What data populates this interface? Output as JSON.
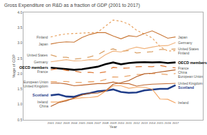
{
  "chart_data": {
    "type": "line",
    "title": "Gross Expenditure on R&D as a fraction of GDP (2001 to 2017)",
    "x_label": "Year",
    "y_label": "%age of GDP",
    "x": [
      2001,
      2002,
      2003,
      2004,
      2005,
      2006,
      2007,
      2008,
      2009,
      2010,
      2011,
      2012,
      2013,
      2014,
      2015,
      2016,
      2017
    ],
    "xlim": [
      1997.5,
      2020.5
    ],
    "xticks": [
      2001,
      2002,
      2003,
      2004,
      2005,
      2006,
      2007,
      2008,
      2009,
      2010,
      2011,
      2012,
      2013,
      2014,
      2015,
      2016,
      2017
    ],
    "ylim": [
      0.5,
      4.0
    ],
    "yticks": [
      {
        "value": 0.5,
        "label": "0.5"
      },
      {
        "value": 1,
        "label": "1.0"
      },
      {
        "value": 1.5,
        "label": "1.5"
      },
      {
        "value": 2,
        "label": "2.0"
      },
      {
        "value": 2.5,
        "label": "2.5"
      },
      {
        "value": 3,
        "label": "3.0"
      },
      {
        "value": 3.5,
        "label": "3.5"
      },
      {
        "value": 4,
        "label": "4.0"
      }
    ],
    "grid": false,
    "series": [
      {
        "name": "Finland",
        "color": "#e8a05c",
        "line_style": "dot",
        "values": [
          3.2,
          3.26,
          3.3,
          3.31,
          3.33,
          3.34,
          3.35,
          3.55,
          3.75,
          3.71,
          3.62,
          3.42,
          3.29,
          3.17,
          2.89,
          2.74,
          2.76
        ]
      },
      {
        "name": "Japan",
        "color": "#c87533",
        "line_style": "solid",
        "values": [
          2.97,
          3.02,
          3.04,
          3.03,
          3.18,
          3.28,
          3.34,
          3.34,
          3.23,
          3.14,
          3.24,
          3.21,
          3.31,
          3.4,
          3.28,
          3.16,
          3.2
        ]
      },
      {
        "name": "United States",
        "color": "#d9a066",
        "line_style": "dash",
        "values": [
          2.62,
          2.54,
          2.54,
          2.48,
          2.5,
          2.55,
          2.62,
          2.76,
          2.81,
          2.73,
          2.76,
          2.68,
          2.7,
          2.72,
          2.79,
          2.79,
          2.81
        ]
      },
      {
        "name": "Germany",
        "color": "#f0b27a",
        "line_style": "solid",
        "values": [
          2.39,
          2.42,
          2.46,
          2.42,
          2.43,
          2.46,
          2.45,
          2.62,
          2.74,
          2.71,
          2.8,
          2.87,
          2.82,
          2.87,
          2.91,
          2.92,
          3.02
        ]
      },
      {
        "name": "OECD members",
        "color": "#000000",
        "line_style": "thick",
        "values": [
          2.2,
          2.18,
          2.16,
          2.13,
          2.15,
          2.19,
          2.23,
          2.31,
          2.37,
          2.31,
          2.35,
          2.37,
          2.38,
          2.37,
          2.38,
          2.35,
          2.37
        ]
      },
      {
        "name": "France",
        "color": "#e07b39",
        "line_style": "dash",
        "values": [
          2.13,
          2.17,
          2.11,
          2.09,
          2.04,
          2.05,
          2.02,
          2.06,
          2.21,
          2.18,
          2.19,
          2.23,
          2.24,
          2.23,
          2.27,
          2.22,
          2.19
        ]
      },
      {
        "name": "European Union",
        "color": "#e9a46a",
        "line_style": "dash",
        "values": [
          1.74,
          1.75,
          1.75,
          1.72,
          1.72,
          1.74,
          1.75,
          1.81,
          1.9,
          1.89,
          1.93,
          1.98,
          1.98,
          2.01,
          2.0,
          1.97,
          2.01
        ]
      },
      {
        "name": "United Kingdom",
        "color": "#c0652b",
        "line_style": "solid",
        "values": [
          1.69,
          1.7,
          1.67,
          1.61,
          1.63,
          1.65,
          1.68,
          1.68,
          1.73,
          1.68,
          1.68,
          1.6,
          1.64,
          1.66,
          1.67,
          1.68,
          1.69
        ]
      },
      {
        "name": "Scotland",
        "color": "#1f3c88",
        "line_style": "thick",
        "values": [
          1.3,
          1.33,
          1.26,
          1.25,
          1.33,
          1.37,
          1.43,
          1.45,
          1.49,
          1.41,
          1.38,
          1.39,
          1.46,
          1.49,
          1.51,
          1.51,
          1.63
        ]
      },
      {
        "name": "Ireland",
        "color": "#f4a460",
        "line_style": "solid",
        "values": [
          1.08,
          1.08,
          1.15,
          1.19,
          1.22,
          1.23,
          1.26,
          1.43,
          1.61,
          1.61,
          1.53,
          1.56,
          1.56,
          1.5,
          1.18,
          1.17,
          1.05
        ]
      },
      {
        "name": "China",
        "color": "#b35a1f",
        "line_style": "solid",
        "values": [
          0.94,
          1.06,
          1.12,
          1.21,
          1.31,
          1.37,
          1.37,
          1.44,
          1.66,
          1.71,
          1.78,
          1.91,
          2.0,
          2.02,
          2.06,
          2.1,
          2.13
        ]
      }
    ]
  }
}
